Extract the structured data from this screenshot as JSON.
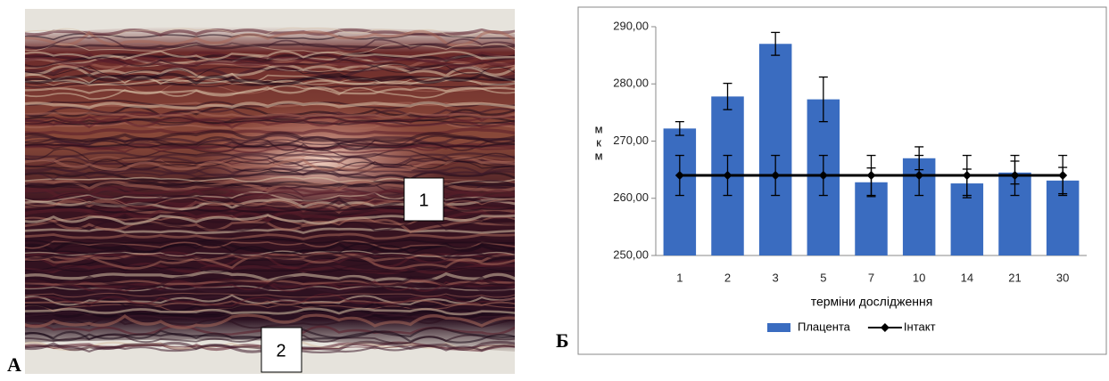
{
  "figure_labels": {
    "photo": "А",
    "chart": "Б"
  },
  "photo_markers": [
    "1",
    "2"
  ],
  "chart_data": {
    "type": "bar",
    "x_label": "терміни дослідження",
    "y_label": "мкм",
    "categories": [
      "1",
      "2",
      "3",
      "5",
      "7",
      "10",
      "14",
      "21",
      "30"
    ],
    "series": [
      {
        "name": "Плацента",
        "type": "bar",
        "color": "#3a6cc0",
        "values": [
          272.2,
          277.8,
          287.0,
          277.3,
          262.8,
          267.0,
          262.6,
          264.5,
          263.1
        ],
        "errors": [
          1.2,
          2.3,
          2.0,
          3.9,
          2.5,
          2.0,
          2.5,
          2.0,
          2.3
        ]
      },
      {
        "name": "Інтакт",
        "type": "line",
        "color": "#000000",
        "values": [
          264,
          264,
          264,
          264,
          264,
          264,
          264,
          264,
          264
        ],
        "errors": [
          3.5,
          3.5,
          3.5,
          3.5,
          3.5,
          3.5,
          3.5,
          3.5,
          3.5
        ]
      }
    ],
    "ylim": [
      250,
      290
    ],
    "yticks": [
      {
        "value": 250,
        "label": "250,00"
      },
      {
        "value": 260,
        "label": "260,00"
      },
      {
        "value": 270,
        "label": "270,00"
      },
      {
        "value": 280,
        "label": "280,00"
      },
      {
        "value": 290,
        "label": "290,00"
      }
    ],
    "grid": false,
    "legend": "bottom"
  }
}
